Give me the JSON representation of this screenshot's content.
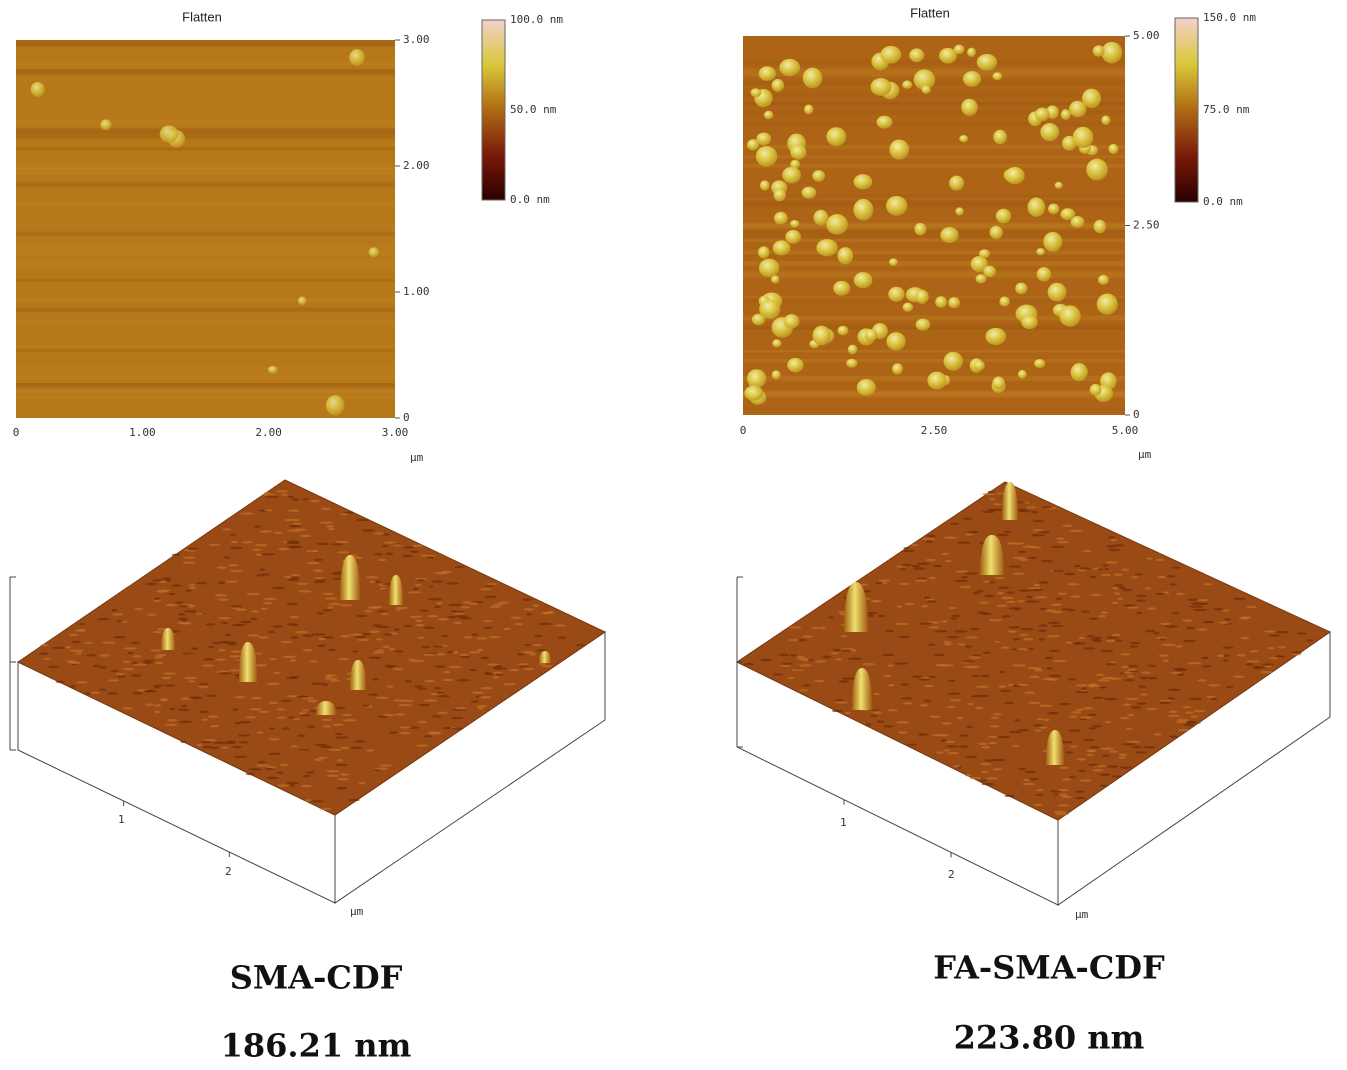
{
  "panels": [
    {
      "title": "Flatten",
      "y_ticks": [
        "3.00",
        "2.00",
        "1.00",
        "0"
      ],
      "x_ticks": [
        "0",
        "1.00",
        "2.00",
        "3.00"
      ],
      "x_unit": "μm",
      "colorbar": [
        "100.0 nm",
        "50.0 nm",
        "0.0 nm"
      ],
      "view3d_ticks": [
        "1",
        "2"
      ],
      "view3d_unit": "μm",
      "sample": "SMA-CDF",
      "size": "186.21 nm"
    },
    {
      "title": "Flatten",
      "y_ticks": [
        "5.00",
        "2.50",
        "0"
      ],
      "x_ticks": [
        "0",
        "2.50",
        "5.00"
      ],
      "x_unit": "μm",
      "colorbar": [
        "150.0 nm",
        "75.0 nm",
        "0.0 nm"
      ],
      "view3d_ticks": [
        "1",
        "2"
      ],
      "view3d_unit": "μm",
      "sample": "FA-SMA-CDF",
      "size": "223.80 nm"
    }
  ]
}
